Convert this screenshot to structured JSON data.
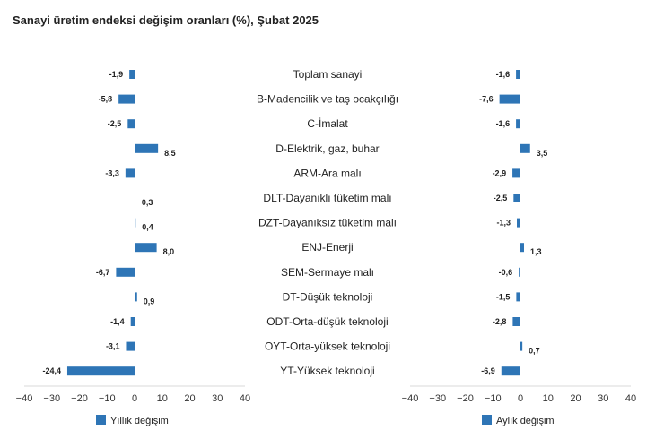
{
  "chart_data": {
    "type": "bar",
    "orientation": "horizontal",
    "title": "Sanayi üretim endeksi değişim oranları (%), Şubat 2025",
    "categories": [
      "Toplam sanayi",
      "B-Madencilik ve taş ocakçılığı",
      "C-İmalat",
      "D-Elektrik, gaz, buhar",
      "ARM-Ara malı",
      "DLT-Dayanıklı tüketim malı",
      "DZT-Dayanıksız tüketim malı",
      "ENJ-Enerji",
      "SEM-Sermaye malı",
      "DT-Düşük teknoloji",
      "ODT-Orta-düşük teknoloji",
      "OYT-Orta-yüksek teknoloji",
      "YT-Yüksek teknoloji"
    ],
    "series": [
      {
        "name": "Yıllık değişim",
        "values": [
          -1.9,
          -5.8,
          -2.5,
          8.5,
          -3.3,
          0.3,
          0.4,
          8.0,
          -6.7,
          0.9,
          -1.4,
          -3.1,
          -24.4
        ],
        "labels": [
          "-1,9",
          "-5,8",
          "-2,5",
          "8,5",
          "-3,3",
          "0,3",
          "0,4",
          "8,0",
          "-6,7",
          "0,9",
          "-1,4",
          "-3,1",
          "-24,4"
        ]
      },
      {
        "name": "Aylık değişim",
        "values": [
          -1.6,
          -7.6,
          -1.6,
          3.5,
          -2.9,
          -2.5,
          -1.3,
          1.3,
          -0.6,
          -1.5,
          -2.8,
          0.7,
          -6.9
        ],
        "labels": [
          "-1,6",
          "-7,6",
          "-1,6",
          "3,5",
          "-2,9",
          "-2,5",
          "-1,3",
          "1,3",
          "-0,6",
          "-1,5",
          "-2,8",
          "0,7",
          "-6,9"
        ]
      }
    ],
    "xlim": [
      -40,
      40
    ],
    "xticks": [
      -40,
      -30,
      -20,
      -10,
      0,
      10,
      20,
      30,
      40
    ],
    "grid": false,
    "legend_position": "bottom",
    "bar_color": "#2e75b6"
  }
}
